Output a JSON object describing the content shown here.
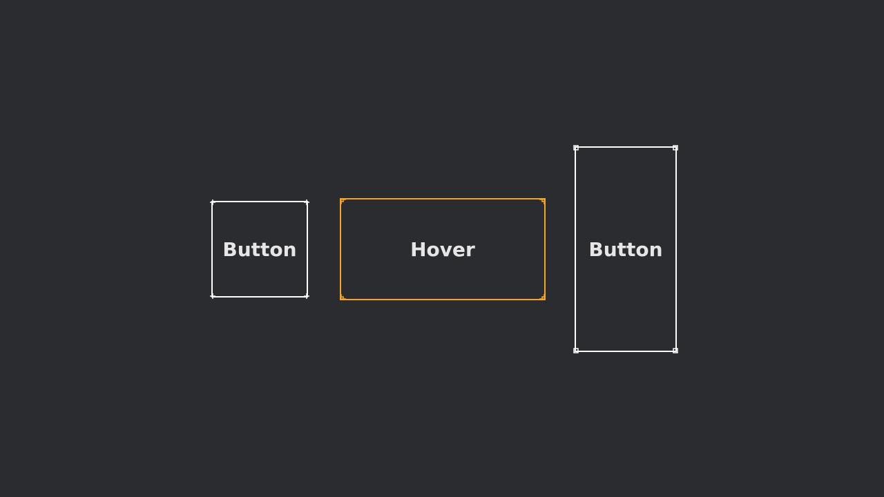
{
  "buttons": [
    {
      "label": "Button",
      "state": "default",
      "color": "#ffffff",
      "corner_icon": "crosshair-corner-icon"
    },
    {
      "label": "Hover",
      "state": "hover",
      "color": "#f5a623",
      "corner_icon": "stepped-corner-icon"
    },
    {
      "label": "Button",
      "state": "default",
      "color": "#ffffff",
      "corner_icon": "square-corner-icon"
    }
  ],
  "theme": {
    "background": "#2b2c30",
    "text": "#e6e6e6",
    "hover_accent": "#f5a623"
  }
}
